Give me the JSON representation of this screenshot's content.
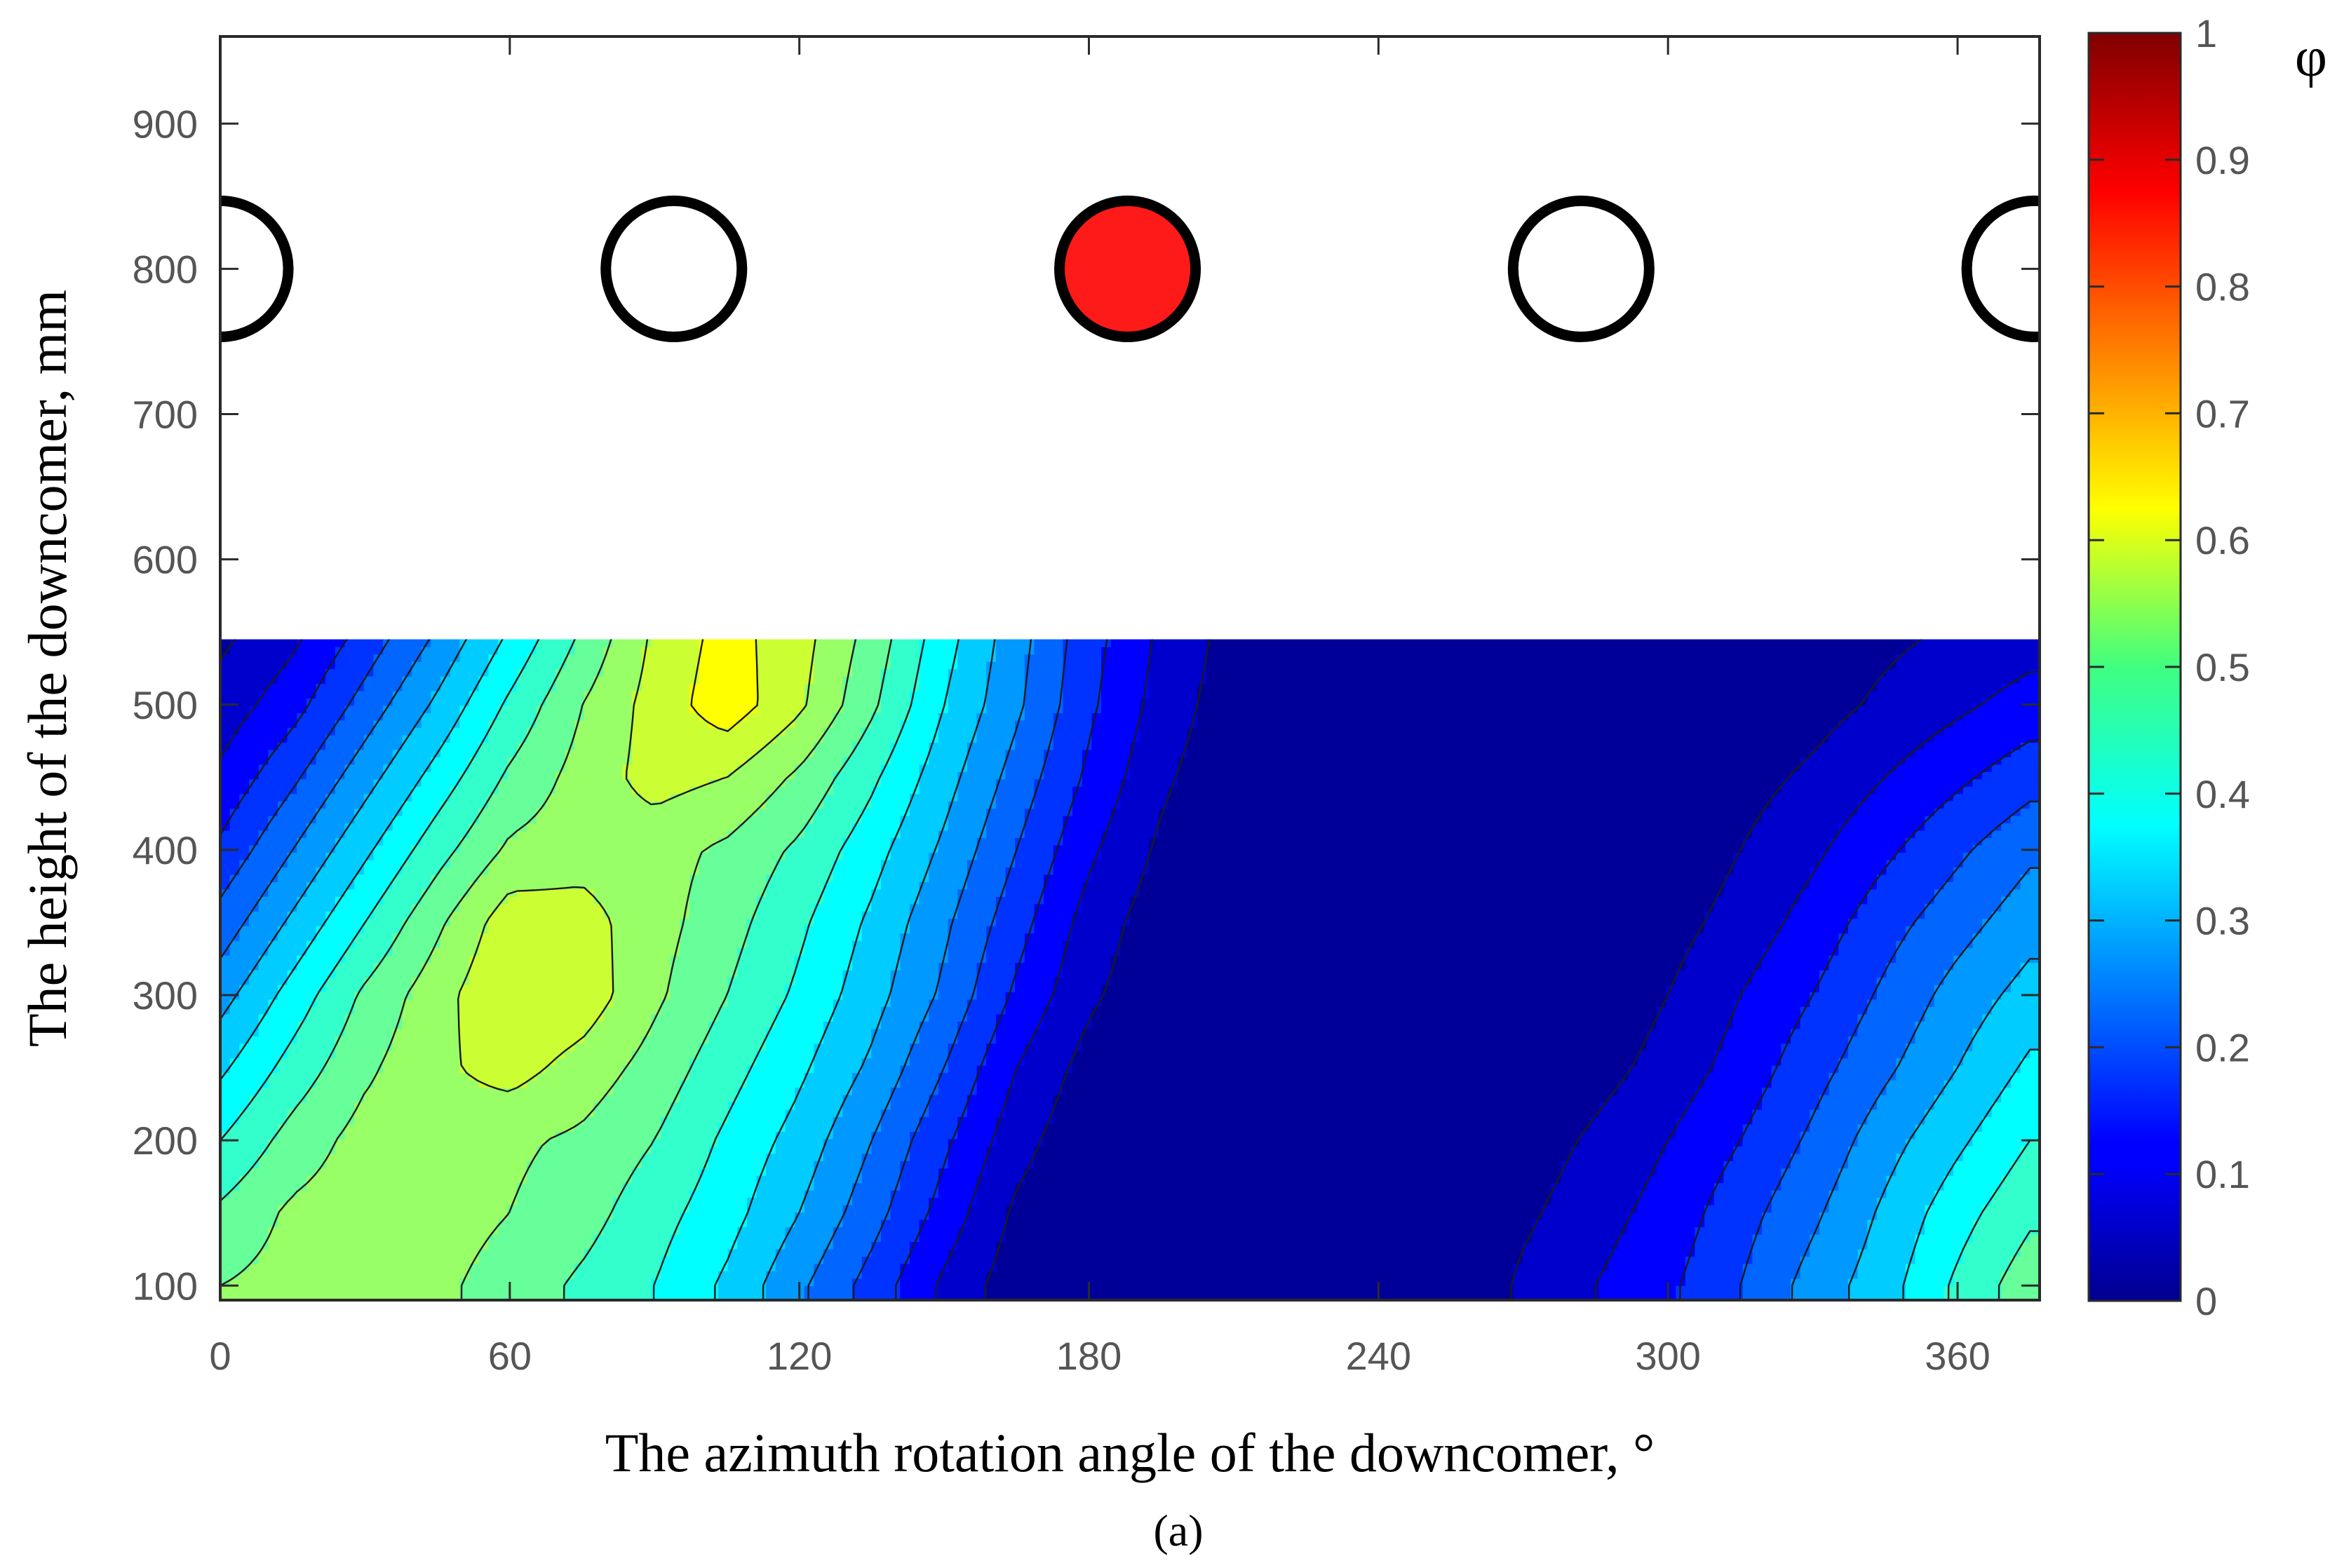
{
  "chart_data": {
    "type": "heatmap",
    "subtype": "filled-contour",
    "xlabel": "The azimuth rotation angle of the downcomer, °",
    "ylabel": "The height of the downcomer, mm",
    "caption": "(a)",
    "xlim": [
      0,
      377
    ],
    "ylim": [
      90,
      960
    ],
    "xticks": [
      "0",
      "60",
      "120",
      "180",
      "240",
      "300",
      "360"
    ],
    "xtick_values": [
      0,
      60,
      120,
      180,
      240,
      300,
      360
    ],
    "yticks": [
      "100",
      "200",
      "300",
      "400",
      "500",
      "600",
      "700",
      "800",
      "900"
    ],
    "ytick_values": [
      100,
      200,
      300,
      400,
      500,
      600,
      700,
      800,
      900
    ],
    "grid": false,
    "colorbar": {
      "label": "φ",
      "range": [
        0,
        1
      ],
      "colormap": "jet",
      "ticks": [
        "0",
        "0.1",
        "0.2",
        "0.3",
        "0.4",
        "0.5",
        "0.6",
        "0.7",
        "0.8",
        "0.9",
        "1"
      ],
      "tick_values": [
        0,
        0.1,
        0.2,
        0.3,
        0.4,
        0.5,
        0.6,
        0.7,
        0.8,
        0.9,
        1
      ],
      "contour_levels": [
        0.05,
        0.1,
        0.15,
        0.2,
        0.25,
        0.3,
        0.35,
        0.4,
        0.45,
        0.5,
        0.55,
        0.6
      ]
    },
    "field_top_height": 545,
    "field_x": [
      0,
      15,
      30,
      45,
      60,
      75,
      90,
      105,
      120,
      135,
      150,
      165,
      180,
      195,
      210,
      225,
      240,
      255,
      270,
      285,
      300,
      315,
      330,
      345,
      360,
      375
    ],
    "field_y": [
      100,
      150,
      200,
      250,
      300,
      350,
      400,
      450,
      500,
      545
    ],
    "field_values": [
      [
        0.5,
        0.52,
        0.53,
        0.51,
        0.48,
        0.44,
        0.4,
        0.34,
        0.26,
        0.18,
        0.09,
        0.02,
        0.0,
        0.0,
        0.0,
        0.0,
        0.0,
        0.0,
        0.06,
        0.1,
        0.14,
        0.2,
        0.27,
        0.33,
        0.41,
        0.48
      ],
      [
        0.46,
        0.51,
        0.53,
        0.52,
        0.5,
        0.47,
        0.42,
        0.37,
        0.3,
        0.22,
        0.13,
        0.04,
        0.0,
        0.0,
        0.0,
        0.0,
        0.0,
        0.0,
        0.04,
        0.08,
        0.12,
        0.18,
        0.24,
        0.31,
        0.38,
        0.44
      ],
      [
        0.4,
        0.47,
        0.52,
        0.53,
        0.51,
        0.49,
        0.45,
        0.39,
        0.33,
        0.25,
        0.16,
        0.07,
        0.01,
        0.0,
        0.0,
        0.0,
        0.0,
        0.0,
        0.02,
        0.06,
        0.1,
        0.15,
        0.21,
        0.28,
        0.34,
        0.4
      ],
      [
        0.34,
        0.42,
        0.49,
        0.54,
        0.57,
        0.53,
        0.48,
        0.42,
        0.36,
        0.29,
        0.2,
        0.1,
        0.03,
        0.0,
        0.0,
        0.0,
        0.0,
        0.0,
        0.0,
        0.03,
        0.07,
        0.12,
        0.18,
        0.24,
        0.3,
        0.36
      ],
      [
        0.28,
        0.37,
        0.46,
        0.53,
        0.6,
        0.58,
        0.51,
        0.45,
        0.39,
        0.32,
        0.24,
        0.14,
        0.06,
        0.01,
        0.0,
        0.0,
        0.0,
        0.0,
        0.0,
        0.01,
        0.05,
        0.1,
        0.15,
        0.21,
        0.27,
        0.32
      ],
      [
        0.22,
        0.31,
        0.4,
        0.49,
        0.58,
        0.57,
        0.52,
        0.47,
        0.41,
        0.34,
        0.26,
        0.17,
        0.08,
        0.02,
        0.0,
        0.0,
        0.0,
        0.0,
        0.0,
        0.0,
        0.03,
        0.07,
        0.12,
        0.18,
        0.23,
        0.28
      ],
      [
        0.16,
        0.25,
        0.34,
        0.43,
        0.51,
        0.53,
        0.52,
        0.49,
        0.44,
        0.37,
        0.29,
        0.2,
        0.11,
        0.04,
        0.0,
        0.0,
        0.0,
        0.0,
        0.0,
        0.0,
        0.01,
        0.05,
        0.09,
        0.14,
        0.19,
        0.24
      ],
      [
        0.11,
        0.19,
        0.28,
        0.37,
        0.46,
        0.52,
        0.57,
        0.55,
        0.49,
        0.41,
        0.32,
        0.23,
        0.14,
        0.06,
        0.01,
        0.0,
        0.0,
        0.0,
        0.0,
        0.0,
        0.0,
        0.03,
        0.06,
        0.1,
        0.14,
        0.18
      ],
      [
        0.07,
        0.13,
        0.22,
        0.31,
        0.41,
        0.5,
        0.57,
        0.63,
        0.56,
        0.46,
        0.35,
        0.26,
        0.16,
        0.08,
        0.02,
        0.0,
        0.0,
        0.0,
        0.0,
        0.0,
        0.0,
        0.01,
        0.03,
        0.06,
        0.09,
        0.12
      ],
      [
        0.04,
        0.09,
        0.17,
        0.26,
        0.36,
        0.46,
        0.56,
        0.62,
        0.57,
        0.48,
        0.37,
        0.27,
        0.17,
        0.09,
        0.03,
        0.0,
        0.0,
        0.0,
        0.0,
        0.0,
        0.0,
        0.0,
        0.02,
        0.04,
        0.06,
        0.08
      ]
    ],
    "markers": [
      {
        "x": 0,
        "y": 800,
        "fill": "none",
        "clipped": true
      },
      {
        "x": 94,
        "y": 800,
        "fill": "none"
      },
      {
        "x": 188,
        "y": 800,
        "fill": "#ff1a1a"
      },
      {
        "x": 282,
        "y": 800,
        "fill": "none"
      },
      {
        "x": 376,
        "y": 800,
        "fill": "none",
        "clipped": true
      }
    ]
  }
}
